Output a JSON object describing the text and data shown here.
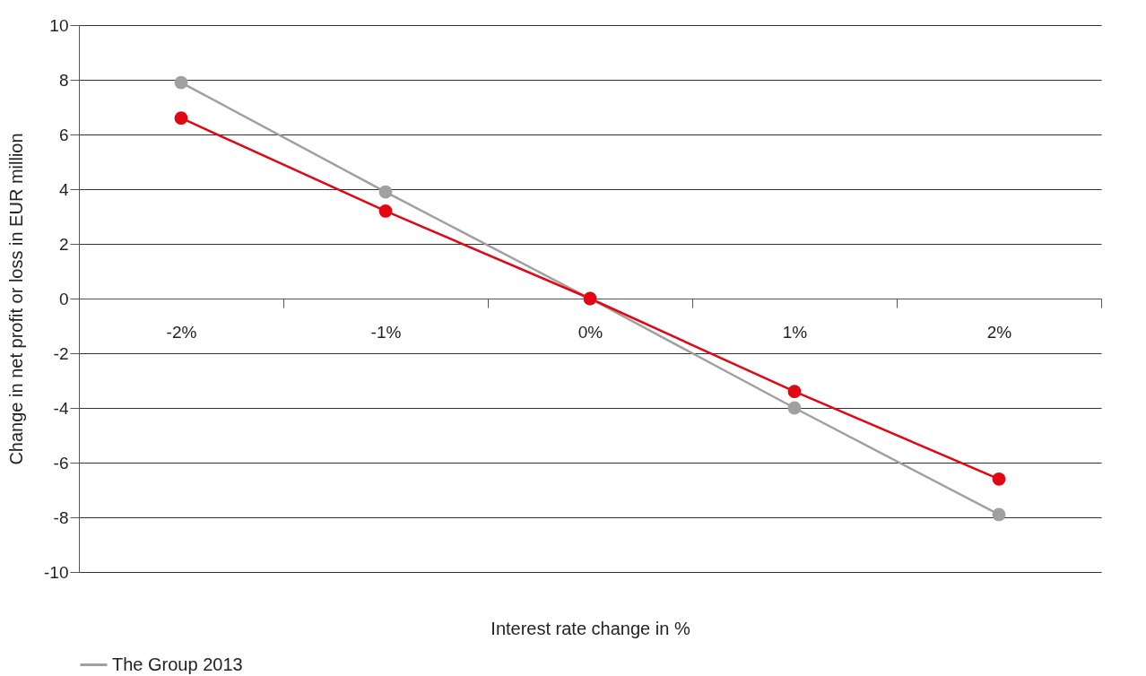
{
  "chart_data": {
    "type": "line",
    "xlabel": "Interest rate change in %",
    "ylabel": "Change in net profit or loss in EUR million",
    "categories": [
      "-2%",
      "-1%",
      "0%",
      "1%",
      "2%"
    ],
    "series": [
      {
        "name": "The Group 2013",
        "color": "#a0a0a0",
        "values": [
          7.9,
          3.9,
          0,
          -4.0,
          -7.9
        ]
      },
      {
        "color": "#e30613",
        "values": [
          6.6,
          3.2,
          0,
          -3.4,
          -6.6
        ]
      }
    ],
    "ylim": [
      -10,
      10
    ],
    "yticks": [
      -10,
      -8,
      -6,
      -4,
      -2,
      0,
      2,
      4,
      6,
      8,
      10
    ],
    "grid": "y",
    "legend": "bottom",
    "marker": "circle",
    "line_style": "solid"
  }
}
